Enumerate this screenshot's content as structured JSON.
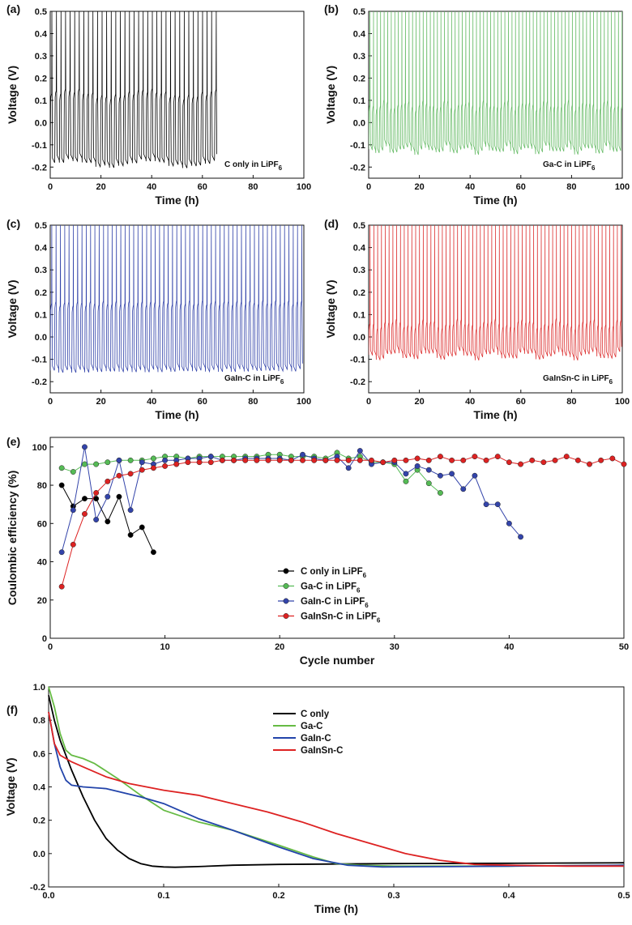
{
  "figure_labels": {
    "a": "(a)",
    "b": "(b)",
    "c": "(c)",
    "d": "(d)",
    "e": "(e)",
    "f": "(f)"
  },
  "chart_data": [
    {
      "id": "a",
      "type": "line",
      "xlabel": "Time (h)",
      "ylabel": "Voltage (V)",
      "xlim": [
        0,
        100
      ],
      "ylim": [
        -0.25,
        0.5
      ],
      "xticks": [
        "0",
        "20",
        "40",
        "60",
        "80",
        "100"
      ],
      "yticks": [
        "-0.2",
        "-0.1",
        "0.0",
        "0.1",
        "0.2",
        "0.3",
        "0.4",
        "0.5"
      ],
      "annotation": {
        "text": "C only in LiPF",
        "sub": "6"
      },
      "color": "#000000",
      "series": [
        {
          "name": "C only in LiPF6",
          "t_end_h": 66,
          "cycle_period_h": 1.8,
          "low_V": -0.18,
          "plateau_V": 0.12,
          "upper_cutoff_V": 0.5
        }
      ]
    },
    {
      "id": "b",
      "type": "line",
      "xlabel": "Time (h)",
      "ylabel": "Voltage (V)",
      "xlim": [
        0,
        100
      ],
      "ylim": [
        -0.25,
        0.5
      ],
      "xticks": [
        "0",
        "20",
        "40",
        "60",
        "80",
        "100"
      ],
      "yticks": [
        "-0.2",
        "-0.1",
        "0.0",
        "0.1",
        "0.2",
        "0.3",
        "0.4",
        "0.5"
      ],
      "annotation": {
        "text": "Ga-C in LiPF",
        "sub": "6"
      },
      "color": "#66bb66",
      "series": [
        {
          "name": "Ga-C in LiPF6",
          "t_end_h": 100,
          "cycle_period_h": 1.4,
          "low_V": -0.12,
          "plateau_V": 0.07,
          "upper_cutoff_V": 0.5
        }
      ]
    },
    {
      "id": "c",
      "type": "line",
      "xlabel": "Time (h)",
      "ylabel": "Voltage (V)",
      "xlim": [
        0,
        100
      ],
      "ylim": [
        -0.25,
        0.5
      ],
      "xticks": [
        "0",
        "20",
        "40",
        "60",
        "80",
        "100"
      ],
      "yticks": [
        "-0.2",
        "-0.1",
        "0.0",
        "0.1",
        "0.2",
        "0.3",
        "0.4",
        "0.5"
      ],
      "annotation": {
        "text": "GaIn-C in LiPF",
        "sub": "6"
      },
      "color": "#3344aa",
      "series": [
        {
          "name": "GaIn-C in LiPF6",
          "t_end_h": 100,
          "cycle_period_h": 1.7,
          "low_V": -0.15,
          "plateau_V": 0.14,
          "upper_cutoff_V": 0.5
        }
      ]
    },
    {
      "id": "d",
      "type": "line",
      "xlabel": "Time (h)",
      "ylabel": "Voltage (V)",
      "xlim": [
        0,
        100
      ],
      "ylim": [
        -0.25,
        0.5
      ],
      "xticks": [
        "0",
        "20",
        "40",
        "60",
        "80",
        "100"
      ],
      "yticks": [
        "-0.2",
        "-0.1",
        "0.0",
        "0.1",
        "0.2",
        "0.3",
        "0.4",
        "0.5"
      ],
      "annotation": {
        "text": "GaInSn-C in LiPF",
        "sub": "6"
      },
      "color": "#dd3333",
      "series": [
        {
          "name": "GaInSn-C in LiPF6",
          "t_end_h": 100,
          "cycle_period_h": 1.5,
          "low_V": -0.08,
          "plateau_V": 0.05,
          "upper_cutoff_V": 0.5
        }
      ]
    },
    {
      "id": "e",
      "type": "scatter",
      "xlabel": "Cycle number",
      "ylabel": "Coulombic efficiency (%)",
      "xlim": [
        0,
        50
      ],
      "ylim": [
        0,
        105
      ],
      "xticks": [
        "0",
        "10",
        "20",
        "30",
        "40",
        "50"
      ],
      "yticks": [
        "0",
        "20",
        "40",
        "60",
        "80",
        "100"
      ],
      "legend_position": "center-left",
      "series": [
        {
          "name": "C only in LiPF",
          "sub": "6",
          "color": "#000000",
          "x": [
            1,
            2,
            3,
            4,
            5,
            6,
            7,
            8,
            9
          ],
          "y": [
            80,
            69,
            73,
            73,
            61,
            74,
            54,
            58,
            45
          ]
        },
        {
          "name": "Ga-C in LiPF",
          "sub": "6",
          "color": "#55bb55",
          "x": [
            1,
            2,
            3,
            4,
            5,
            6,
            7,
            8,
            9,
            10,
            11,
            12,
            13,
            14,
            15,
            16,
            17,
            18,
            19,
            20,
            21,
            22,
            23,
            24,
            25,
            26,
            27,
            28,
            29,
            30,
            31,
            32,
            33,
            34
          ],
          "y": [
            89,
            87,
            91,
            91,
            92,
            93,
            93,
            93,
            94,
            95,
            95,
            94,
            95,
            95,
            95,
            95,
            95,
            95,
            96,
            96,
            95,
            95,
            95,
            94,
            97,
            94,
            95,
            92,
            92,
            91,
            82,
            88,
            81,
            76
          ]
        },
        {
          "name": "GaIn-C in LiPF",
          "sub": "6",
          "color": "#3344aa",
          "x": [
            1,
            2,
            3,
            4,
            5,
            6,
            7,
            8,
            9,
            10,
            11,
            12,
            13,
            14,
            15,
            16,
            17,
            18,
            19,
            20,
            21,
            22,
            23,
            24,
            25,
            26,
            27,
            28,
            29,
            30,
            31,
            32,
            33,
            34,
            35,
            36,
            37,
            38,
            39,
            40,
            41
          ],
          "y": [
            45,
            67,
            100,
            62,
            74,
            93,
            67,
            92,
            91,
            93,
            93,
            94,
            94,
            95,
            93,
            93,
            94,
            94,
            94,
            94,
            93,
            96,
            94,
            93,
            95,
            89,
            98,
            91,
            92,
            92,
            86,
            90,
            88,
            85,
            86,
            78,
            85,
            70,
            70,
            60,
            53
          ]
        },
        {
          "name": "GaInSn-C in LiPF",
          "sub": "6",
          "color": "#dd2222",
          "x": [
            1,
            2,
            3,
            4,
            5,
            6,
            7,
            8,
            9,
            10,
            11,
            12,
            13,
            14,
            15,
            16,
            17,
            18,
            19,
            20,
            21,
            22,
            23,
            24,
            25,
            26,
            27,
            28,
            29,
            30,
            31,
            32,
            33,
            34,
            35,
            36,
            37,
            38,
            39,
            40,
            41,
            42,
            43,
            44,
            45,
            46,
            47,
            48,
            49,
            50
          ],
          "y": [
            27,
            49,
            65,
            76,
            82,
            85,
            86,
            88,
            89,
            90,
            91,
            92,
            92,
            92,
            93,
            93,
            93,
            93,
            93,
            93,
            93,
            93,
            93,
            93,
            93,
            93,
            93,
            93,
            92,
            93,
            93,
            94,
            93,
            95,
            93,
            93,
            95,
            93,
            95,
            92,
            91,
            93,
            92,
            93,
            95,
            93,
            91,
            93,
            94,
            91
          ]
        }
      ]
    },
    {
      "id": "f",
      "type": "line",
      "xlabel": "Time (h)",
      "ylabel": "Voltage (V)",
      "xlim": [
        0,
        0.5
      ],
      "ylim": [
        -0.2,
        1.0
      ],
      "xticks": [
        "0.0",
        "0.1",
        "0.2",
        "0.3",
        "0.4",
        "0.5"
      ],
      "yticks": [
        "-0.2",
        "0.0",
        "0.2",
        "0.4",
        "0.6",
        "0.8",
        "1.0"
      ],
      "legend_position": "top-center",
      "series": [
        {
          "name": "C only",
          "color": "#000000",
          "x": [
            0,
            0.005,
            0.01,
            0.02,
            0.03,
            0.04,
            0.05,
            0.06,
            0.07,
            0.08,
            0.09,
            0.1,
            0.11,
            0.13,
            0.16,
            0.2,
            0.3,
            0.4,
            0.5
          ],
          "y": [
            0.95,
            0.8,
            0.68,
            0.5,
            0.34,
            0.2,
            0.09,
            0.02,
            -0.03,
            -0.06,
            -0.075,
            -0.08,
            -0.082,
            -0.078,
            -0.07,
            -0.065,
            -0.06,
            -0.058,
            -0.055
          ]
        },
        {
          "name": "Ga-C",
          "color": "#66bb44",
          "x": [
            0,
            0.005,
            0.01,
            0.015,
            0.02,
            0.03,
            0.04,
            0.06,
            0.08,
            0.1,
            0.13,
            0.16,
            0.2,
            0.23,
            0.25,
            0.27,
            0.3,
            0.4,
            0.5
          ],
          "y": [
            1.0,
            0.88,
            0.72,
            0.62,
            0.59,
            0.57,
            0.54,
            0.45,
            0.35,
            0.26,
            0.19,
            0.14,
            0.05,
            -0.02,
            -0.06,
            -0.07,
            -0.075,
            -0.075,
            -0.07
          ]
        },
        {
          "name": "GaIn-C",
          "color": "#2244aa",
          "x": [
            0,
            0.005,
            0.01,
            0.015,
            0.02,
            0.03,
            0.05,
            0.08,
            0.1,
            0.13,
            0.16,
            0.2,
            0.23,
            0.26,
            0.29,
            0.35,
            0.4,
            0.5
          ],
          "y": [
            0.85,
            0.66,
            0.52,
            0.44,
            0.41,
            0.4,
            0.39,
            0.34,
            0.3,
            0.21,
            0.14,
            0.04,
            -0.03,
            -0.07,
            -0.08,
            -0.078,
            -0.075,
            -0.07
          ]
        },
        {
          "name": "GaInSn-C",
          "color": "#dd2222",
          "x": [
            0,
            0.005,
            0.01,
            0.02,
            0.03,
            0.05,
            0.07,
            0.1,
            0.13,
            0.16,
            0.19,
            0.22,
            0.25,
            0.28,
            0.31,
            0.34,
            0.37,
            0.4,
            0.45,
            0.5
          ],
          "y": [
            0.85,
            0.66,
            0.59,
            0.55,
            0.52,
            0.46,
            0.42,
            0.38,
            0.35,
            0.3,
            0.25,
            0.19,
            0.12,
            0.06,
            0.0,
            -0.04,
            -0.065,
            -0.07,
            -0.075,
            -0.075
          ]
        }
      ]
    }
  ]
}
